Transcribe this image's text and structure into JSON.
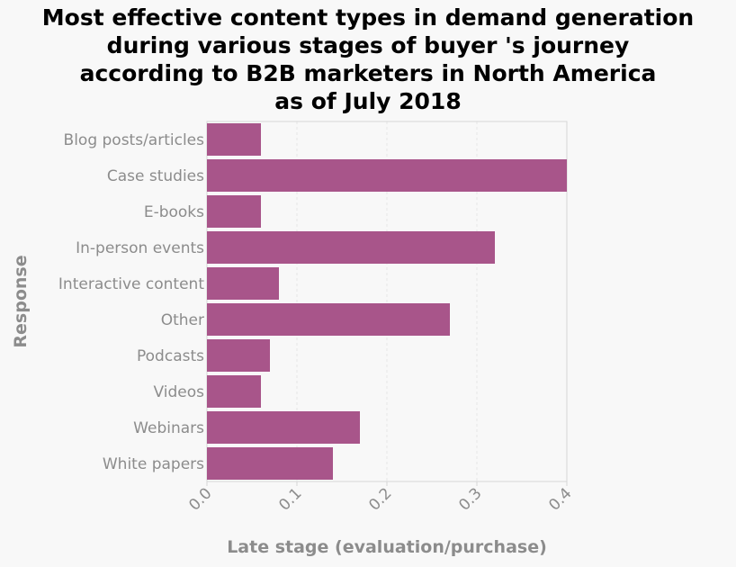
{
  "chart_data": {
    "type": "bar",
    "orientation": "horizontal",
    "title": "Most effective content types in demand generation\nduring various stages of buyer 's journey\naccording to B2B marketers in North America\nas of July 2018",
    "xlabel": "Late stage (evaluation/purchase)",
    "ylabel": "Response",
    "categories": [
      "Blog posts/articles",
      "Case studies",
      "E-books",
      "In-person events",
      "Interactive content",
      "Other",
      "Podcasts",
      "Videos",
      "Webinars",
      "White papers"
    ],
    "values": [
      0.06,
      0.4,
      0.06,
      0.32,
      0.08,
      0.27,
      0.07,
      0.06,
      0.17,
      0.14
    ],
    "xlim": [
      0,
      0.4
    ],
    "xticks": [
      "0.0",
      "0.1",
      "0.2",
      "0.3",
      "0.4"
    ],
    "grid": true,
    "bar_color": "#a8558a",
    "background_color": "#f8f8f8",
    "gridline_color": "#e6e6e6",
    "label_color": "#8c8c8c"
  }
}
